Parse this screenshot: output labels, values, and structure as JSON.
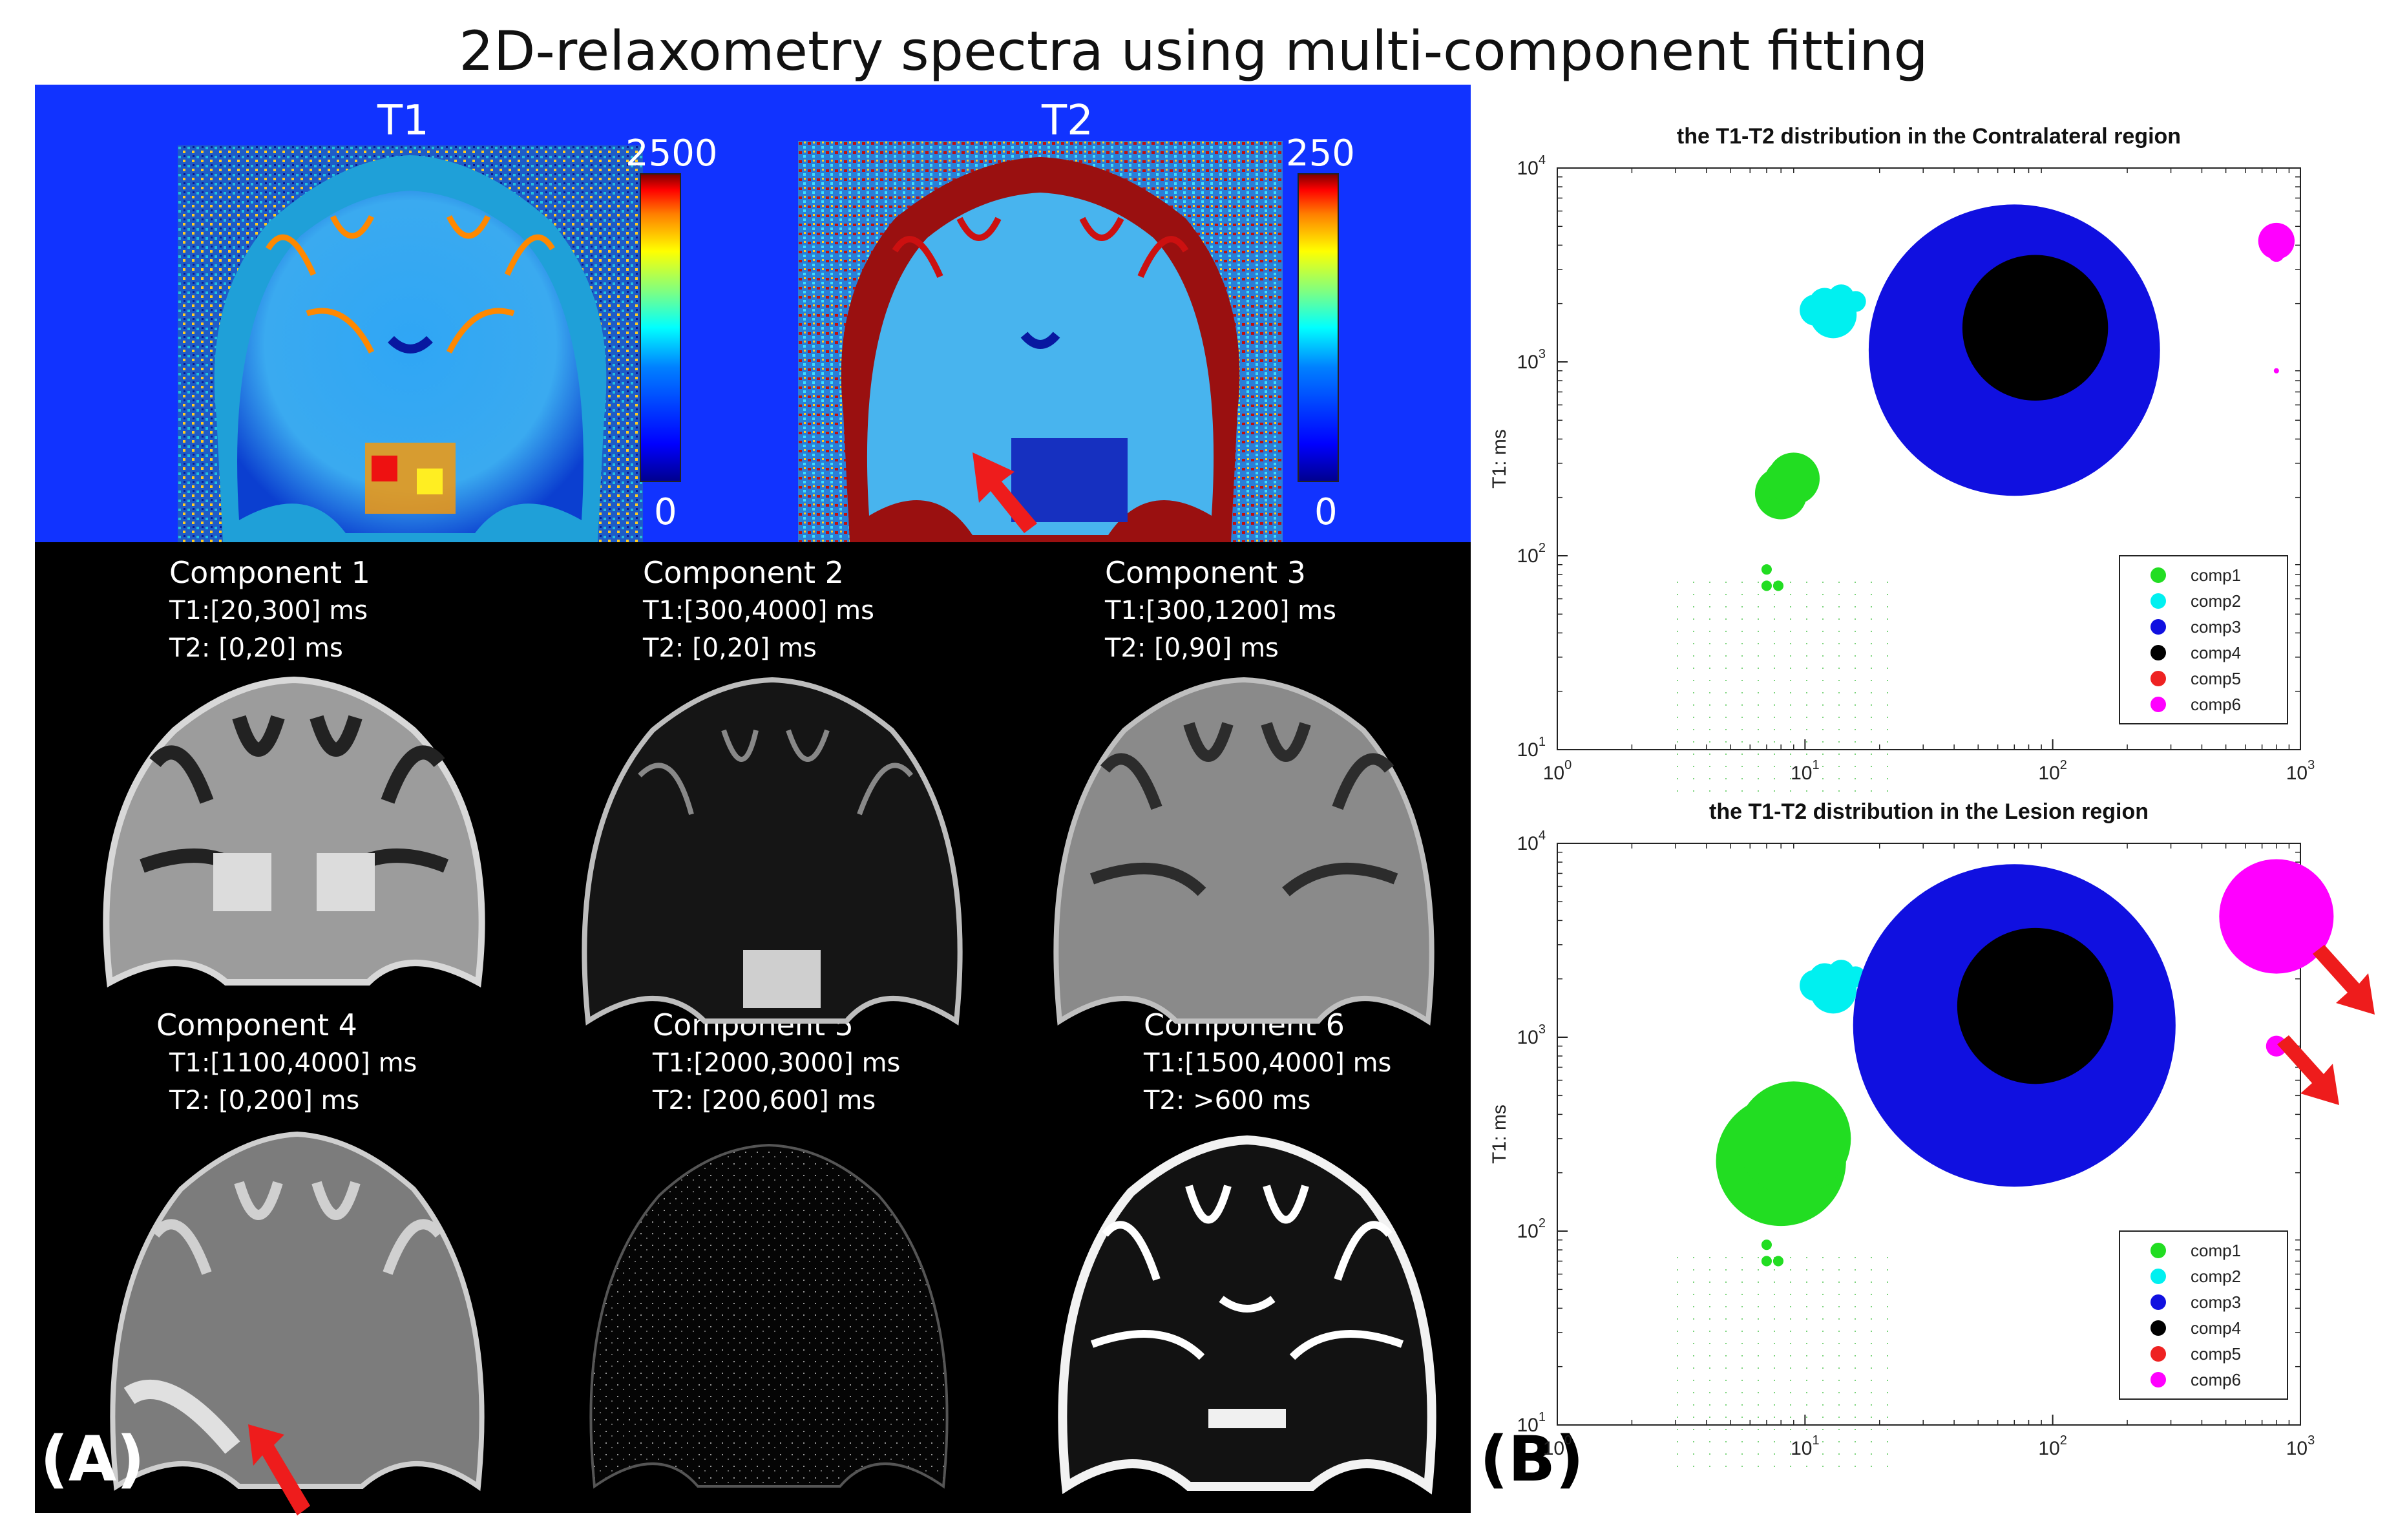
{
  "figure_title": "2D-relaxometry spectra using multi-component fitting",
  "panel_a": {
    "label": "(A)",
    "maps": [
      {
        "name": "T1",
        "cb_max": "2500",
        "cb_min": "0"
      },
      {
        "name": "T2",
        "cb_max": "250",
        "cb_min": "0"
      }
    ],
    "components": [
      {
        "title": "Component 1",
        "t1": "T1:[20,300] ms",
        "t2": "T2: [0,20] ms"
      },
      {
        "title": "Component 2",
        "t1": "T1:[300,4000] ms",
        "t2": "T2: [0,20] ms"
      },
      {
        "title": "Component 3",
        "t1": "T1:[300,1200] ms",
        "t2": "T2: [0,90] ms"
      },
      {
        "title": "Component 4",
        "t1": "T1:[1100,4000] ms",
        "t2": "T2: [0,200] ms"
      },
      {
        "title": "Component 5",
        "t1": "T1:[2000,3000] ms",
        "t2": "T2: [200,600] ms"
      },
      {
        "title": "Component 6",
        "t1": "T1:[1500,4000] ms",
        "t2": "T2: >600 ms"
      }
    ]
  },
  "panel_b": {
    "label": "(B)"
  },
  "chart_data": [
    {
      "type": "scatter",
      "title": "the T1-T2 distribution in the Contralateral region",
      "xlabel": "T2: ms",
      "ylabel": "T1: ms",
      "xscale": "log",
      "yscale": "log",
      "xlim": [
        1,
        1000
      ],
      "ylim": [
        10,
        10000
      ],
      "xticks": [
        {
          "base": "10",
          "exp": "0"
        },
        {
          "base": "10",
          "exp": "1"
        },
        {
          "base": "10",
          "exp": "2"
        },
        {
          "base": "10",
          "exp": "3"
        }
      ],
      "yticks": [
        {
          "base": "10",
          "exp": "1"
        },
        {
          "base": "10",
          "exp": "2"
        },
        {
          "base": "10",
          "exp": "3"
        },
        {
          "base": "10",
          "exp": "4"
        }
      ],
      "legend_position": "bottom-right",
      "series": [
        {
          "name": "comp1",
          "color": "#22dd22",
          "points": [
            [
              8,
              210,
              0.1
            ],
            [
              8.5,
              240,
              0.09
            ],
            [
              9,
              250,
              0.1
            ],
            [
              7,
              85,
              0.02
            ],
            [
              7,
              70,
              0.02
            ],
            [
              7.8,
              70,
              0.02
            ]
          ]
        },
        {
          "name": "comp2",
          "color": "#00f0f0",
          "points": [
            [
              13,
              1750,
              0.09
            ],
            [
              11,
              1850,
              0.06
            ],
            [
              12,
              2000,
              0.06
            ],
            [
              14,
              2150,
              0.05
            ],
            [
              16,
              2050,
              0.04
            ]
          ]
        },
        {
          "name": "comp3",
          "color": "#1010e0",
          "points": [
            [
              70,
              1150,
              0.56
            ]
          ]
        },
        {
          "name": "comp4",
          "color": "#000000",
          "points": [
            [
              85,
              1500,
              0.28
            ],
            [
              110,
              1600,
              0.16
            ],
            [
              70,
              1400,
              0.13
            ]
          ]
        },
        {
          "name": "comp5",
          "color": "#ee2222",
          "points": []
        },
        {
          "name": "comp6",
          "color": "#ff00ff",
          "points": [
            [
              800,
              4200,
              0.07
            ],
            [
              800,
              3600,
              0.03
            ],
            [
              800,
              900,
              0.01
            ]
          ]
        }
      ]
    },
    {
      "type": "scatter",
      "title": "the T1-T2 distribution in the Lesion region",
      "xlabel": "T2: ms",
      "ylabel": "T1: ms",
      "xscale": "log",
      "yscale": "log",
      "xlim": [
        1,
        1000
      ],
      "ylim": [
        10,
        10000
      ],
      "xticks": [
        {
          "base": "10",
          "exp": "0"
        },
        {
          "base": "10",
          "exp": "1"
        },
        {
          "base": "10",
          "exp": "2"
        },
        {
          "base": "10",
          "exp": "3"
        }
      ],
      "yticks": [
        {
          "base": "10",
          "exp": "1"
        },
        {
          "base": "10",
          "exp": "2"
        },
        {
          "base": "10",
          "exp": "3"
        },
        {
          "base": "10",
          "exp": "4"
        }
      ],
      "legend_position": "bottom-right",
      "series": [
        {
          "name": "comp1",
          "color": "#22dd22",
          "points": [
            [
              8,
              230,
              0.25
            ],
            [
              9,
              300,
              0.22
            ],
            [
              7,
              85,
              0.02
            ],
            [
              7,
              70,
              0.02
            ],
            [
              7.8,
              70,
              0.02
            ]
          ]
        },
        {
          "name": "comp2",
          "color": "#00f0f0",
          "points": [
            [
              13,
              1750,
              0.09
            ],
            [
              11,
              1850,
              0.06
            ],
            [
              12,
              2000,
              0.06
            ],
            [
              14,
              2150,
              0.05
            ],
            [
              16,
              2050,
              0.04
            ]
          ]
        },
        {
          "name": "comp3",
          "color": "#1010e0",
          "points": [
            [
              70,
              1150,
              0.62
            ]
          ]
        },
        {
          "name": "comp4",
          "color": "#000000",
          "points": [
            [
              85,
              1450,
              0.3
            ],
            [
              120,
              1550,
              0.14
            ],
            [
              70,
              1300,
              0.15
            ]
          ]
        },
        {
          "name": "comp5",
          "color": "#ee2222",
          "points": []
        },
        {
          "name": "comp6",
          "color": "#ff00ff",
          "points": [
            [
              800,
              4200,
              0.22
            ],
            [
              800,
              900,
              0.04
            ]
          ]
        }
      ]
    }
  ]
}
